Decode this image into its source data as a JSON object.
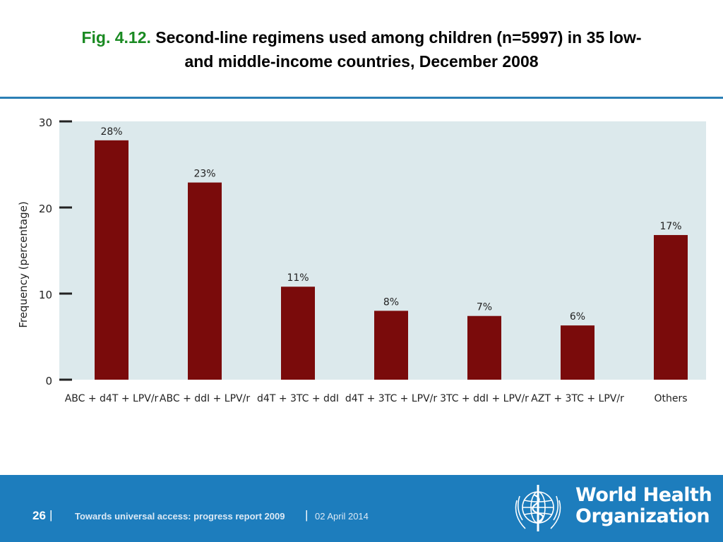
{
  "slide": {
    "title_prefix": "Fig. 4.12.",
    "title_line1": " Second-line regimens used among children (n=5997) in 35 low-",
    "title_line2": "and middle-income countries, December 2008"
  },
  "footer": {
    "page_number": "26",
    "separator": "|",
    "report_title": "Towards universal access: progress report 2009",
    "date": "02 April 2014",
    "org_line1": "World Health",
    "org_line2": "Organization"
  },
  "colors": {
    "bar": "#7a0b0b",
    "plot_bg": "#dce9ec",
    "title_accent": "#1a8a22",
    "footer_bg": "#1d7dbd",
    "rule": "#2b7fb5"
  },
  "chart_data": {
    "type": "bar",
    "title": "",
    "xlabel": "",
    "ylabel": "Frequency (percentage)",
    "ylim": [
      0,
      30
    ],
    "yticks": [
      0,
      10,
      20,
      30
    ],
    "categories": [
      "ABC + d4T + LPV/r",
      "ABC + ddI + LPV/r",
      "d4T + 3TC + ddI",
      "d4T + 3TC + LPV/r",
      "3TC + ddI + LPV/r",
      "AZT + 3TC + LPV/r",
      "Others"
    ],
    "values": [
      27.8,
      22.9,
      10.8,
      8.0,
      7.4,
      6.3,
      16.8
    ],
    "data_labels": [
      "28%",
      "23%",
      "11%",
      "8%",
      "7%",
      "6%",
      "17%"
    ],
    "grid": false,
    "legend": "none"
  }
}
